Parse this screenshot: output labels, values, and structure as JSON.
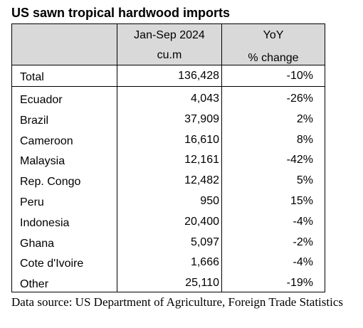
{
  "title": "US sawn tropical hardwood imports",
  "header": {
    "col2_line1": "Jan-Sep 2024",
    "col2_line2": "cu.m",
    "col3_line1": "YoY",
    "col3_line2": "% change"
  },
  "total": {
    "country": "Total",
    "volume": "136,428",
    "change": "-10%"
  },
  "rows": [
    {
      "country": "Ecuador",
      "volume": "4,043",
      "change": "-26%"
    },
    {
      "country": "Brazil",
      "volume": "37,909",
      "change": "2%"
    },
    {
      "country": "Cameroon",
      "volume": "16,610",
      "change": "8%"
    },
    {
      "country": "Malaysia",
      "volume": "12,161",
      "change": "-42%"
    },
    {
      "country": "Rep. Congo",
      "volume": "12,482",
      "change": "5%"
    },
    {
      "country": "Peru",
      "volume": "950",
      "change": "15%"
    },
    {
      "country": "Indonesia",
      "volume": "20,400",
      "change": "-4%"
    },
    {
      "country": "Ghana",
      "volume": "5,097",
      "change": "-2%"
    },
    {
      "country": "Cote d'Ivoire",
      "volume": "1,666",
      "change": "-4%"
    },
    {
      "country": "Other",
      "volume": "25,110",
      "change": "-19%"
    }
  ],
  "source": "Data source: US Department of Agriculture, Foreign Trade Statistics"
}
